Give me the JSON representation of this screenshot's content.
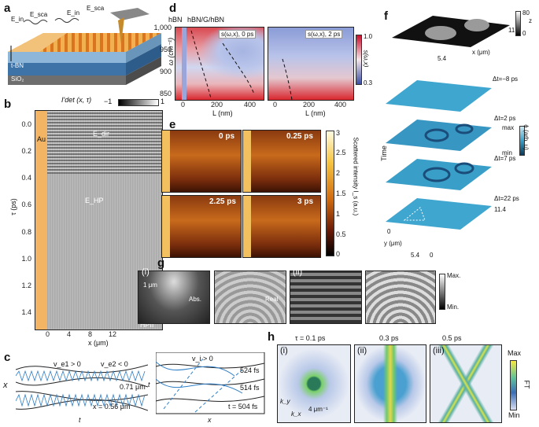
{
  "panels": {
    "a": {
      "label": "a",
      "layers": [
        "t-BN",
        "SiO₂"
      ],
      "field_labels": [
        "E_in",
        "E_sca",
        "E_in",
        "E_sca"
      ]
    },
    "b": {
      "label": "b",
      "title": "I′det (x, τ)",
      "colorbar": [
        "−1",
        "1"
      ],
      "ylabel": "τ (ps)",
      "xlabel": "x (μm)",
      "yticks": [
        "0.0",
        "0.2",
        "0.4",
        "0.6",
        "0.8",
        "1.0",
        "1.2",
        "1.4"
      ],
      "xticks": [
        "0",
        "4",
        "8",
        "12"
      ],
      "annot": [
        "Au",
        "E_dir",
        "E_HP",
        "HPII"
      ]
    },
    "c": {
      "label": "c",
      "left": {
        "ylabel": "x",
        "xlabel": "t",
        "annot": [
          "v_e1 > 0",
          "v_e2 < 0",
          "0.71 μm",
          "x = 0.56 μm"
        ]
      },
      "right": {
        "ylabel": "t",
        "xlabel": "x",
        "annot": [
          "v_i > 0",
          "524 fs",
          "514 fs",
          "t = 504 fs"
        ]
      }
    },
    "d": {
      "label": "d",
      "header_left": "hBN",
      "header_mid": "hBN/G/hBN",
      "sub_titles": [
        "s(ω,x), 0 ps",
        "s(ω,x), 2 ps"
      ],
      "ylabel": "ω (cm⁻¹)",
      "xlabel": "L (nm)",
      "yticks": [
        "1,000",
        "950",
        "900",
        "850"
      ],
      "xticks_left": [
        "0",
        "200",
        "400"
      ],
      "xticks_right": [
        "0",
        "200",
        "400"
      ],
      "colorbar": {
        "label": "s(ω,x)",
        "max": "1.0",
        "min": "0.3"
      }
    },
    "e": {
      "label": "e",
      "times": [
        "0 ps",
        "0.25 ps",
        "2.25 ps",
        "3 ps"
      ],
      "colorbar": {
        "label": "Scattered intensity I_s (a.u.)",
        "ticks": [
          "3",
          "2.5",
          "2",
          "1.5",
          "1",
          "0.5",
          "0"
        ]
      }
    },
    "f": {
      "label": "f",
      "top_ticks": [
        "11.4",
        "5.4"
      ],
      "zbar": {
        "label": "z",
        "max": "80",
        "min": "0",
        "unit": "(nm)"
      },
      "times": [
        "Δt=−8 ps",
        "Δt=2 ps",
        "Δt=7 ps",
        "Δt=22 ps"
      ],
      "phase": {
        "label": "ϕ (arb. u)",
        "max": "max",
        "min": "min"
      },
      "time_axis": "Time",
      "x_label": "x (μm)",
      "y_label": "y (μm)",
      "ticks": [
        "0",
        "11.4",
        "0",
        "5.4",
        "0"
      ]
    },
    "g": {
      "label": "g",
      "sub": [
        "(i)",
        "(ii)"
      ],
      "scale": "1 μm",
      "annot": [
        "Abs.",
        "Real"
      ],
      "bar": [
        "Max.",
        "Min."
      ]
    },
    "h": {
      "label": "h",
      "titles": [
        "τ = 0.1 ps",
        "0.3 ps",
        "0.5 ps"
      ],
      "sub": [
        "(i)",
        "(ii)",
        "(iii)"
      ],
      "scale": "4 μm⁻¹",
      "axes": [
        "k_y",
        "k_x"
      ],
      "colorbar": {
        "label": "FT",
        "max": "Max",
        "min": "Min"
      }
    }
  },
  "colors": {
    "gold": "#f2b057",
    "red": "#d7262b",
    "blue": "#2d4fa1",
    "teal": "#3a9fc8"
  }
}
